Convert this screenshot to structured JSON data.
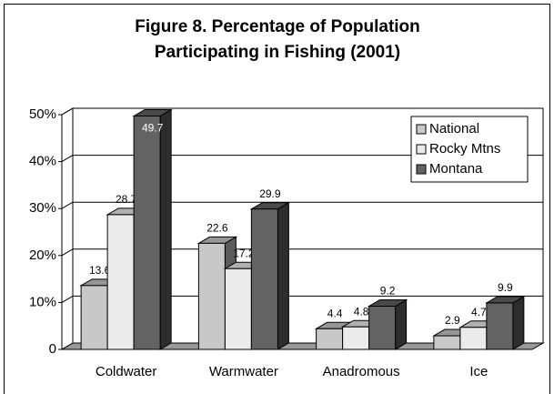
{
  "chart_data": {
    "type": "bar3d",
    "title": "Figure 8. Percentage of Population",
    "subtitle": "Participating in Fishing (2001)",
    "categories": [
      "Coldwater",
      "Warmwater",
      "Anadromous",
      "Ice"
    ],
    "series": [
      {
        "name": "National",
        "color": "#c8c8c8",
        "values": [
          13.6,
          22.6,
          4.4,
          2.9
        ]
      },
      {
        "name": "Rocky Mtns",
        "color": "#ebebeb",
        "values": [
          28.7,
          17.2,
          4.8,
          4.7
        ]
      },
      {
        "name": "Montana",
        "color": "#636363",
        "values": [
          49.7,
          29.9,
          9.2,
          9.9
        ]
      }
    ],
    "ylim": [
      0,
      50
    ],
    "yticks": [
      0,
      {
        "value": 10,
        "label": "10%"
      },
      {
        "value": 20,
        "label": "20%"
      },
      {
        "value": 30,
        "label": "30%"
      },
      {
        "value": 40,
        "label": "40%"
      },
      {
        "value": 50,
        "label": "50%"
      }
    ],
    "grid": true,
    "legend": "upper right"
  }
}
